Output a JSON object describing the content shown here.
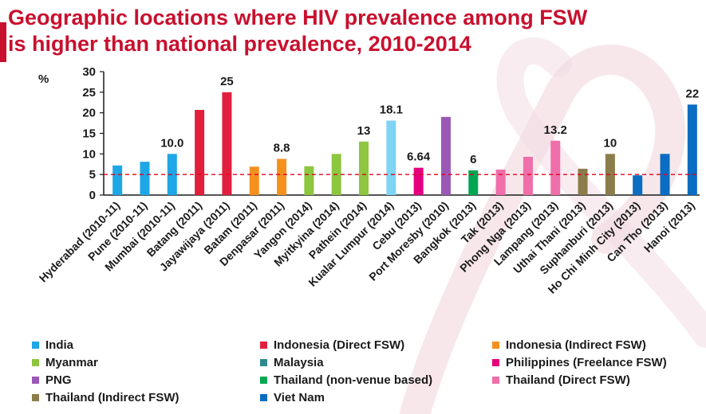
{
  "title": {
    "line1": "Geographic locations where HIV prevalence among FSW",
    "line2": "is higher than national prevalence, 2010-2014"
  },
  "colors": {
    "title": "#c8102e",
    "reference_line": "#e0001b",
    "India": "#1ea7e6",
    "Indonesia (Direct FSW)": "#e11f3d",
    "Indonesia (Indirect FSW)": "#f5901e",
    "Myanmar": "#8dc63f",
    "Malaysia": "#2e8a8c",
    "Philippines (Freelance FSW)": "#e4007c",
    "PNG": "#9b59b6",
    "Thailand (non-venue based)": "#00a651",
    "Thailand (Direct FSW)": "#f06eaa",
    "Thailand (Indirect FSW)": "#8b7d4b",
    "Viet Nam": "#0a6cc2",
    "Kualar Lumpur bar": "#7fd3f5"
  },
  "chart_data": {
    "type": "bar",
    "title": "Geographic locations where HIV prevalence among FSW is higher than national prevalence, 2010-2014",
    "ylabel": "%",
    "ylim": [
      0,
      30
    ],
    "yticks": [
      0,
      5,
      10,
      15,
      20,
      25,
      30
    ],
    "reference_line": 5,
    "grid": false,
    "legend_position": "bottom",
    "categories": [
      "Hyderabad (2010-11)",
      "Pune (2010-11)",
      "Mumbai (2010-11)",
      "Batang (2011)",
      "Jayawijaya (2011)",
      "Batam (2011)",
      "Denpasar (2011)",
      "Yangon (2014)",
      "Myitkyina (2014)",
      "Pathein (2014)",
      "Kualar Lumpur (2014)",
      "Cebu (2013)",
      "Port Moresby (2010)",
      "Bangkok (2013)",
      "Tak (2013)",
      "Phong Nga (2013)",
      "Lampang (2013)",
      "Uthai Thani (2013)",
      "Suphanburi (2013)",
      "Ho Chi Minh City (2013)",
      "Can Tho (2013)",
      "Hanoi (2013)"
    ],
    "values": [
      7.2,
      8.1,
      10.0,
      20.7,
      25,
      6.9,
      8.8,
      7.0,
      10.0,
      13,
      18.1,
      6.64,
      19.0,
      6,
      6.2,
      9.3,
      13.2,
      6.4,
      10,
      4.8,
      10.0,
      22
    ],
    "data_labels": [
      "",
      "",
      "10.0",
      "",
      "25",
      "",
      "8.8",
      "",
      "",
      "13",
      "18.1",
      "6.64",
      "",
      "6",
      "",
      "",
      "13.2",
      "",
      "10",
      "",
      "",
      "22"
    ],
    "groups": [
      "India",
      "India",
      "India",
      "Indonesia (Direct FSW)",
      "Indonesia (Direct FSW)",
      "Indonesia (Indirect FSW)",
      "Indonesia (Indirect FSW)",
      "Myanmar",
      "Myanmar",
      "Myanmar",
      "Malaysia",
      "Philippines (Freelance FSW)",
      "PNG",
      "Thailand (non-venue based)",
      "Thailand (Direct FSW)",
      "Thailand (Direct FSW)",
      "Thailand (Direct FSW)",
      "Thailand (Indirect FSW)",
      "Thailand (Indirect FSW)",
      "Viet Nam",
      "Viet Nam",
      "Viet Nam"
    ]
  },
  "legend": {
    "items": [
      "India",
      "Indonesia (Direct FSW)",
      "Indonesia (Indirect FSW)",
      "Myanmar",
      "Malaysia",
      "Philippines (Freelance FSW)",
      "PNG",
      "Thailand (non-venue based)",
      "Thailand (Direct FSW)",
      "Thailand (Indirect FSW)",
      "Viet Nam"
    ]
  }
}
